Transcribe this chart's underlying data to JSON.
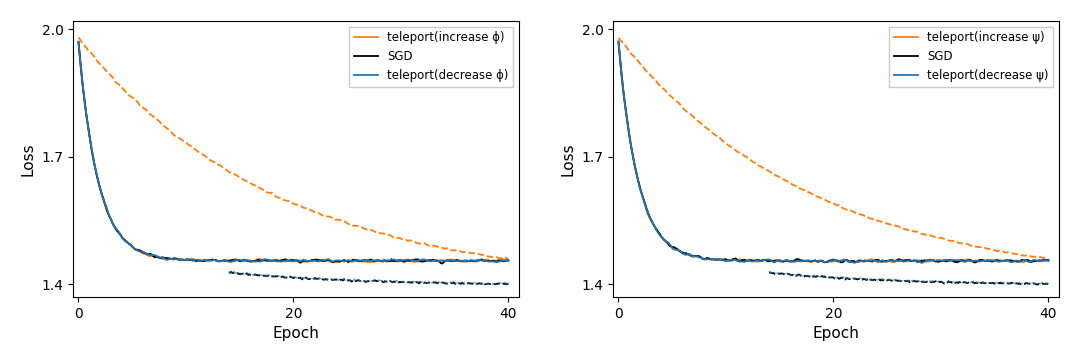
{
  "xlabel": "Epoch",
  "ylabel": "Loss",
  "ylim": [
    1.37,
    2.02
  ],
  "xlim": [
    -0.5,
    41
  ],
  "yticks": [
    1.4,
    1.7,
    2.0
  ],
  "xticks": [
    0,
    20,
    40
  ],
  "sgd_color": "#000000",
  "decrease_color": "#1f77b4",
  "increase_color": "#ff7f0e",
  "legend1": [
    "SGD",
    "teleport(decrease ϕ)",
    "teleport(increase ϕ)"
  ],
  "legend2": [
    "SGD",
    "teleport(decrease ψ)",
    "teleport(increase ψ)"
  ]
}
